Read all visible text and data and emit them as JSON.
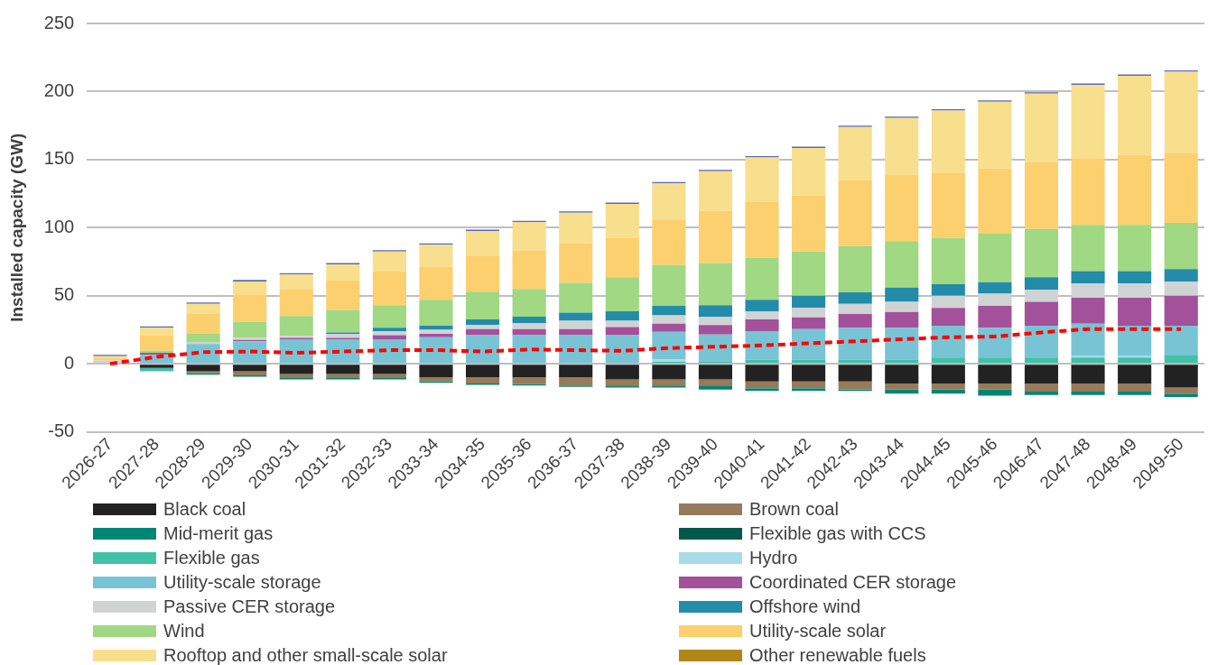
{
  "chart_data": {
    "type": "bar",
    "stacked": true,
    "ylabel": "Installed capacity (GW)",
    "ylim": [
      -50,
      250
    ],
    "yticks": [
      -50,
      0,
      50,
      100,
      150,
      200,
      250
    ],
    "grid": "y",
    "legend": "bottom",
    "categories": [
      "2026-27",
      "2027-28",
      "2028-29",
      "2029-30",
      "2030-31",
      "2031-32",
      "2032-33",
      "2033-34",
      "2034-35",
      "2035-36",
      "2036-37",
      "2037-38",
      "2038-39",
      "2039-40",
      "2040-41",
      "2041-42",
      "2042-43",
      "2043-44",
      "2044-45",
      "2045-46",
      "2046-47",
      "2047-48",
      "2048-49",
      "2049-50"
    ],
    "series": [
      {
        "name": "Black coal",
        "color": "#222222",
        "values": [
          0,
          -2.5,
          -5.5,
          -5.5,
          -7.5,
          -7.5,
          -7.5,
          -10,
          -10,
          -10,
          -10,
          -11.5,
          -11.5,
          -11.5,
          -13,
          -13,
          -13,
          -14.5,
          -14.5,
          -14.5,
          -14.5,
          -14.5,
          -14.5,
          -17.5
        ]
      },
      {
        "name": "Brown coal",
        "color": "#967a5c",
        "values": [
          0,
          0,
          -1.5,
          -3,
          -3,
          -3,
          -3,
          -3,
          -4.5,
          -5,
          -6,
          -5,
          -5,
          -5,
          -5,
          -5,
          -6,
          -4.5,
          -4.5,
          -4.5,
          -6,
          -6,
          -6,
          -4.5
        ]
      },
      {
        "name": "Mid-merit gas",
        "color": "#008675",
        "values": [
          0,
          -1,
          -1,
          -1,
          -1,
          -1,
          -1,
          -1,
          -1,
          -1,
          -1,
          -1,
          -1,
          -2.5,
          -2,
          -2,
          -1,
          -3,
          -3,
          -4.5,
          -2.5,
          -2.5,
          -2.5,
          -2.5
        ]
      },
      {
        "name": "Flexible gas with CCS",
        "color": "#005a4a",
        "values": [
          0,
          0,
          0,
          0,
          0,
          0,
          0,
          0,
          0,
          0,
          0,
          0,
          0,
          0,
          0,
          0,
          0,
          0,
          0,
          0,
          0,
          0,
          0,
          0
        ]
      },
      {
        "name": "Flexible gas",
        "color": "#40c1a8",
        "values": [
          0,
          -2,
          0,
          0,
          0,
          0,
          0,
          0,
          0,
          0,
          0,
          0,
          1.5,
          1.5,
          3,
          3,
          3,
          3,
          4.5,
          4.5,
          4.5,
          4.5,
          4.5,
          6
        ]
      },
      {
        "name": "Hydro",
        "color": "#a8dbe8",
        "values": [
          0,
          0,
          0,
          0,
          0,
          0,
          0,
          0,
          0,
          0,
          0,
          0,
          1.5,
          null,
          0,
          0,
          0,
          0,
          0,
          0,
          0,
          1.5,
          1.5,
          0
        ]
      },
      {
        "name": "Utility-scale storage",
        "color": "#78c4d4",
        "values": [
          0,
          6.5,
          14.5,
          16.5,
          18,
          18,
          18,
          19.5,
          21,
          21,
          21,
          21,
          20.5,
          20,
          21,
          22.5,
          23.5,
          23.5,
          23.5,
          22,
          23.5,
          23.5,
          22,
          22
        ]
      },
      {
        "name": "Coordinated CER storage",
        "color": "#a3519a",
        "values": [
          0,
          1.5,
          0,
          1,
          1,
          1,
          3,
          2.5,
          4.5,
          4.5,
          4.5,
          6,
          6,
          7,
          8.5,
          8.5,
          10,
          11.5,
          13,
          16,
          17.5,
          19,
          20.5,
          22
        ]
      },
      {
        "name": "Passive CER storage",
        "color": "#d0d3d4",
        "values": [
          2.5,
          0,
          1.5,
          1.5,
          1.5,
          3,
          3,
          3,
          3,
          4.5,
          6,
          4.5,
          6,
          6,
          6,
          7,
          7.5,
          7.5,
          9,
          9,
          9,
          10.5,
          10.5,
          10.5
        ]
      },
      {
        "name": "Offshore wind",
        "color": "#238ca9",
        "values": [
          0,
          0,
          0,
          0,
          0,
          1,
          2.5,
          3,
          4,
          4.5,
          6,
          7,
          7,
          8.5,
          8.5,
          9,
          8.5,
          10.5,
          8.5,
          8.5,
          9,
          9,
          9,
          9
        ]
      },
      {
        "name": "Wind",
        "color": "#a1d883",
        "values": [
          0,
          1.5,
          6,
          12,
          14.5,
          16.5,
          16.5,
          19,
          20.5,
          20.5,
          22,
          25,
          30,
          31,
          31,
          32.5,
          34,
          34,
          34,
          35.5,
          35.5,
          34,
          34,
          34
        ]
      },
      {
        "name": "Utility-scale solar",
        "color": "#fcd06f",
        "values": [
          1.5,
          11.5,
          15,
          20,
          20,
          21.5,
          25,
          24,
          26.5,
          28,
          29,
          29,
          33.5,
          38.5,
          41,
          41,
          48.5,
          49,
          47.5,
          48,
          49,
          49,
          51.5,
          51.5
        ]
      },
      {
        "name": "Rooftop and other small-scale solar",
        "color": "#f8df8d",
        "values": [
          1.5,
          5.5,
          7,
          9.5,
          10.5,
          12,
          14.5,
          16.5,
          18,
          21,
          22.5,
          25,
          26.5,
          29,
          32.5,
          35,
          39,
          41.5,
          46,
          49,
          50.5,
          54,
          58,
          59.5
        ]
      },
      {
        "name": "Other renewable fuels",
        "color": "#b08618",
        "values": [
          0,
          0,
          0,
          0,
          0,
          0,
          0,
          0,
          0,
          0,
          0,
          0,
          0,
          0,
          0,
          0,
          0,
          0,
          0,
          0,
          0,
          0,
          0,
          0
        ]
      },
      {
        "color": "#5b6bb5",
        "values": [
          1,
          1,
          1,
          1,
          1,
          1,
          1,
          1,
          1,
          1,
          1,
          1,
          1,
          1,
          1,
          1,
          1,
          1,
          1,
          1,
          1,
          1,
          1,
          1
        ]
      },
      {
        "type": "line",
        "color": "#ff0000",
        "line_style": "dashed",
        "marker": "none",
        "values": [
          0,
          5,
          8.5,
          9,
          8,
          9,
          10,
          10,
          9,
          10.5,
          10,
          9.5,
          11.5,
          12.5,
          13.5,
          15,
          16.5,
          18,
          19.5,
          20,
          23,
          25.5,
          25.5,
          25.5
        ]
      }
    ]
  }
}
